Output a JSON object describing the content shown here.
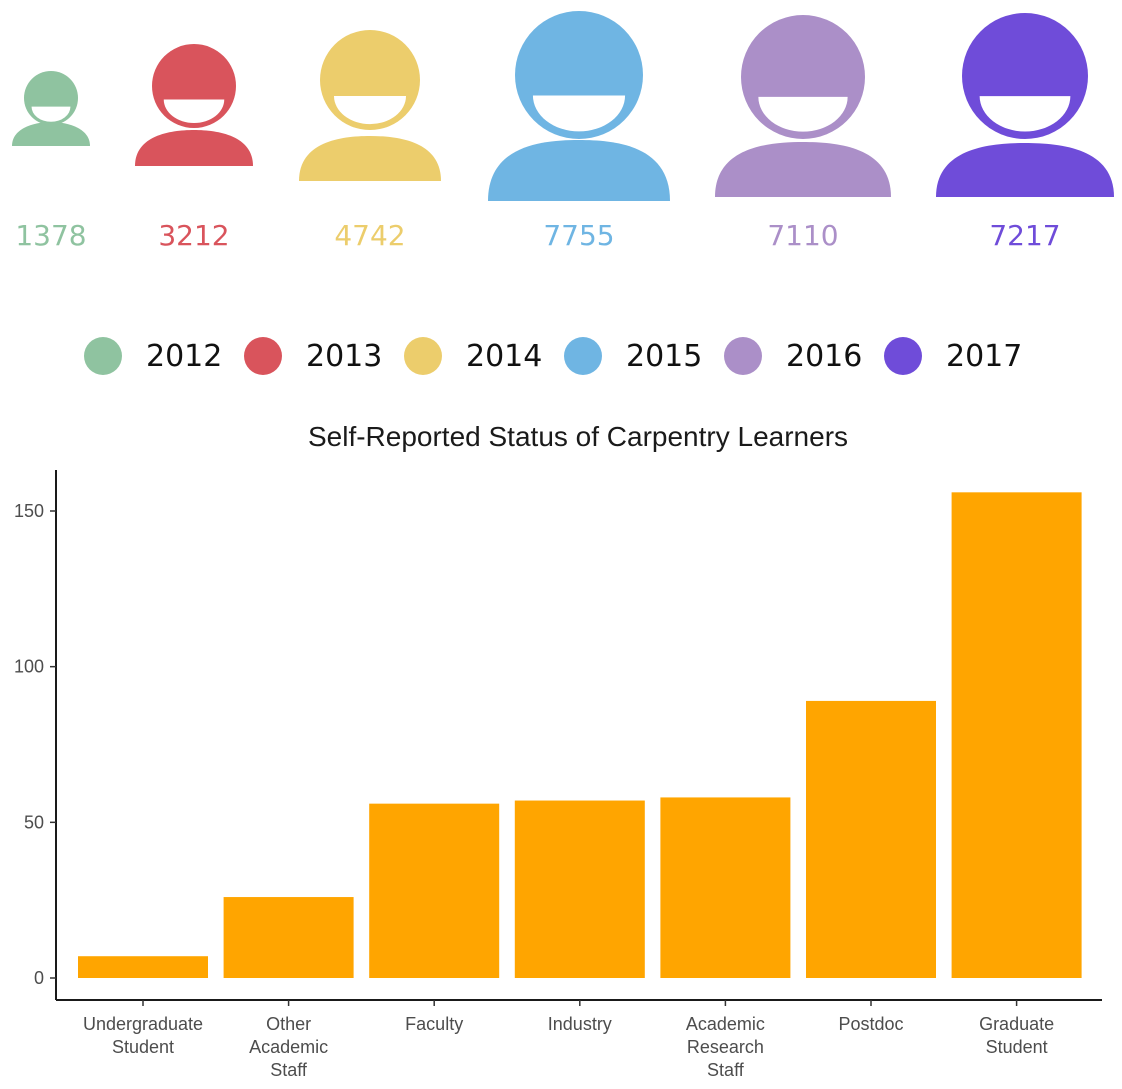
{
  "learners_by_year": [
    {
      "year": "2012",
      "count": "1378",
      "color": "#8fc3a0"
    },
    {
      "year": "2013",
      "count": "3212",
      "color": "#d9545c"
    },
    {
      "year": "2014",
      "count": "4742",
      "color": "#eccd6c"
    },
    {
      "year": "2015",
      "count": "7755",
      "color": "#6fb5e3"
    },
    {
      "year": "2016",
      "count": "7110",
      "color": "#ab8fc8"
    },
    {
      "year": "2017",
      "count": "7217",
      "color": "#6f4cd9"
    }
  ],
  "icon": "person-icon",
  "chart_data": {
    "type": "bar",
    "title": "Self-Reported Status of Carpentry Learners",
    "xlabel": "",
    "ylabel": "",
    "categories": [
      [
        "Undergraduate",
        "Student"
      ],
      [
        "Other",
        "Academic",
        "Staff"
      ],
      [
        "Faculty"
      ],
      [
        "Industry"
      ],
      [
        "Academic",
        "Research",
        "Staff"
      ],
      [
        "Postdoc"
      ],
      [
        "Graduate",
        "Student"
      ]
    ],
    "values": [
      7,
      26,
      56,
      57,
      58,
      89,
      156
    ],
    "ylim": [
      0,
      160
    ],
    "yticks": [
      0,
      50,
      100,
      150
    ],
    "bar_color": "#ffa500",
    "grid": false,
    "legend": "none"
  }
}
